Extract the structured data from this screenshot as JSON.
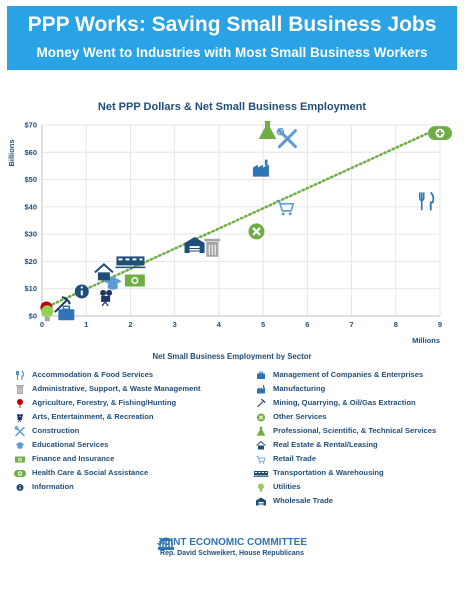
{
  "header": {
    "title": "PPP Works: Saving Small Business Jobs",
    "subtitle": "Money Went to Industries with Most Small Business Workers"
  },
  "chart_data": {
    "type": "scatter",
    "title": "Net PPP Dollars & Net Small Business Employment",
    "xlabel": "Net Small Business Employment by Sector",
    "x_unit": "Millions",
    "ylabel": "Billions",
    "xlim": [
      0,
      9
    ],
    "ylim": [
      0,
      70
    ],
    "x_ticks": [
      "0",
      "1",
      "2",
      "3",
      "4",
      "5",
      "6",
      "7",
      "8",
      "9"
    ],
    "y_ticks": [
      "$0",
      "$10",
      "$20",
      "$30",
      "$40",
      "$50",
      "$60",
      "$70"
    ],
    "grid": true,
    "trendline": "dotted green linear fit",
    "points": [
      {
        "sector": "Accommodation & Food Services",
        "x": 8.7,
        "y": 42,
        "icon": "fork-knife-icon",
        "color": "#2f75b5"
      },
      {
        "sector": "Administrative, Support, & Waste Management",
        "x": 3.85,
        "y": 25,
        "icon": "trash-can-icon",
        "color": "#a6a6a6"
      },
      {
        "sector": "Agriculture, Forestry, & Fishing/Hunting",
        "x": 0.1,
        "y": 2,
        "icon": "tree-icon",
        "color": "#c00000"
      },
      {
        "sector": "Arts, Entertainment, & Recreation",
        "x": 1.45,
        "y": 7,
        "icon": "camera-icon",
        "color": "#1f3864"
      },
      {
        "sector": "Construction",
        "x": 5.55,
        "y": 65,
        "icon": "tools-icon",
        "color": "#5b9bd5"
      },
      {
        "sector": "Educational Services",
        "x": 1.6,
        "y": 12,
        "icon": "graduation-cap-icon",
        "color": "#5b9bd5"
      },
      {
        "sector": "Finance and Insurance",
        "x": 2.1,
        "y": 13,
        "icon": "money-icon",
        "color": "#70ad47"
      },
      {
        "sector": "Health Care & Social Assistance",
        "x": 9.0,
        "y": 67,
        "icon": "health-pill-icon",
        "color": "#70ad47"
      },
      {
        "sector": "Information",
        "x": 0.9,
        "y": 9,
        "icon": "info-icon",
        "color": "#1f4e79"
      },
      {
        "sector": "Management of Companies & Enterprises",
        "x": 0.55,
        "y": 1,
        "icon": "briefcase-icon",
        "color": "#2f75b5"
      },
      {
        "sector": "Manufacturing",
        "x": 4.95,
        "y": 54,
        "icon": "factory-icon",
        "color": "#2f75b5"
      },
      {
        "sector": "Mining, Quarrying, & Oil/Gas Extraction",
        "x": 0.45,
        "y": 4,
        "icon": "pickaxe-icon",
        "color": "#1f3864"
      },
      {
        "sector": "Other Services",
        "x": 4.85,
        "y": 31,
        "icon": "other-services-icon",
        "color": "#70ad47"
      },
      {
        "sector": "Professional, Scientific, & Technical Services",
        "x": 5.1,
        "y": 68,
        "icon": "flask-icon",
        "color": "#70ad47"
      },
      {
        "sector": "Real Estate & Rental/Leasing",
        "x": 1.4,
        "y": 16,
        "icon": "house-icon",
        "color": "#1f4e79"
      },
      {
        "sector": "Retail Trade",
        "x": 5.5,
        "y": 40,
        "icon": "cart-icon",
        "color": "#5b9bd5"
      },
      {
        "sector": "Transportation & Warehousing",
        "x": 2.0,
        "y": 20,
        "icon": "train-icon",
        "color": "#1f4e79"
      },
      {
        "sector": "Utilities",
        "x": 0.12,
        "y": 1,
        "icon": "bulb-icon",
        "color": "#92d050"
      },
      {
        "sector": "Wholesale Trade",
        "x": 3.45,
        "y": 26,
        "icon": "warehouse-icon",
        "color": "#1f4e79"
      }
    ]
  },
  "legend_left": [
    {
      "label": "Accommodation & Food Services",
      "icon": "fork-knife-icon",
      "color": "#2f75b5"
    },
    {
      "label": "Administrative, Support, & Waste Management",
      "icon": "trash-can-icon",
      "color": "#a6a6a6"
    },
    {
      "label": "Agriculture, Forestry, & Fishing/Hunting",
      "icon": "tree-icon",
      "color": "#c00000"
    },
    {
      "label": "Arts, Entertainment, & Recreation",
      "icon": "camera-icon",
      "color": "#1f3864"
    },
    {
      "label": "Construction",
      "icon": "tools-icon",
      "color": "#5b9bd5"
    },
    {
      "label": "Educational Services",
      "icon": "graduation-cap-icon",
      "color": "#5b9bd5"
    },
    {
      "label": "Finance and Insurance",
      "icon": "money-icon",
      "color": "#70ad47"
    },
    {
      "label": "Health Care & Social Assistance",
      "icon": "health-pill-icon",
      "color": "#70ad47"
    },
    {
      "label": "Information",
      "icon": "info-icon",
      "color": "#1f4e79"
    }
  ],
  "legend_right": [
    {
      "label": "Management of Companies & Enterprises",
      "icon": "briefcase-icon",
      "color": "#2f75b5"
    },
    {
      "label": "Manufacturing",
      "icon": "factory-icon",
      "color": "#2f75b5"
    },
    {
      "label": "Mining, Quarrying, & Oil/Gas Extraction",
      "icon": "pickaxe-icon",
      "color": "#1f3864"
    },
    {
      "label": "Other Services",
      "icon": "other-services-icon",
      "color": "#70ad47"
    },
    {
      "label": "Professional, Scientific, & Technical Services",
      "icon": "flask-icon",
      "color": "#70ad47"
    },
    {
      "label": "Real Estate & Rental/Leasing",
      "icon": "house-icon",
      "color": "#1f4e79"
    },
    {
      "label": "Retail Trade",
      "icon": "cart-icon",
      "color": "#5b9bd5"
    },
    {
      "label": "Transportation & Warehousing",
      "icon": "train-icon",
      "color": "#1f4e79"
    },
    {
      "label": "Utilities",
      "icon": "bulb-icon",
      "color": "#92d050"
    },
    {
      "label": "Wholesale Trade",
      "icon": "warehouse-icon",
      "color": "#1f4e79"
    }
  ],
  "footer": {
    "org": "JOINT ECONOMIC COMMITTEE",
    "credit": "Rep. David Schweikert, House Republicans"
  }
}
